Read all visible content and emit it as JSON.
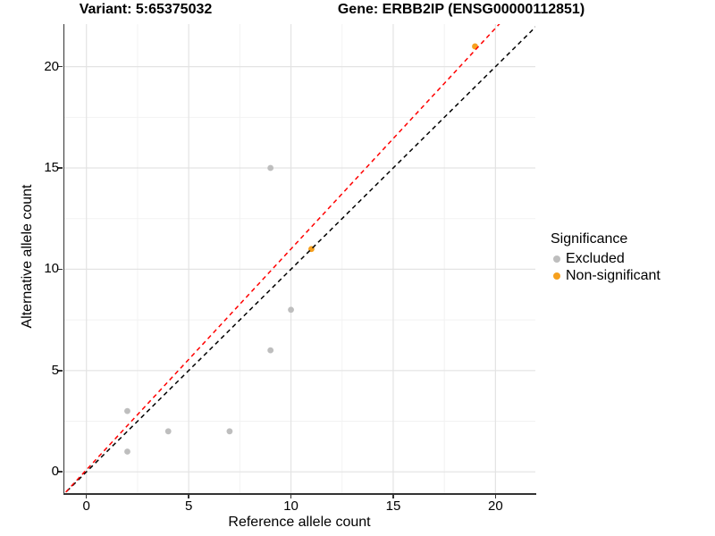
{
  "title": {
    "left": "Variant: 5:65375032",
    "right": "Gene: ERBB2IP (ENSG00000112851)"
  },
  "axes": {
    "x": {
      "label": "Reference allele count",
      "ticks": [
        0,
        5,
        10,
        15,
        20
      ],
      "minor_ticks": [
        2.5,
        7.5,
        12.5,
        17.5
      ]
    },
    "y": {
      "label": "Alternative allele count",
      "ticks": [
        0,
        5,
        10,
        15,
        20
      ],
      "minor_ticks": [
        2.5,
        7.5,
        12.5,
        17.5
      ]
    }
  },
  "legend": {
    "title": "Significance",
    "items": [
      {
        "label": "Excluded",
        "color": "#bebebe"
      },
      {
        "label": "Non-significant",
        "color": "#f6a01e"
      }
    ]
  },
  "chart_data": {
    "type": "scatter",
    "title_left": "Variant: 5:65375032",
    "title_right": "Gene: ERBB2IP (ENSG00000112851)",
    "xlabel": "Reference allele count",
    "ylabel": "Alternative allele count",
    "xlim": [
      -1.08,
      21.95
    ],
    "ylim": [
      -1.05,
      22.1
    ],
    "x_ticks": [
      0,
      5,
      10,
      15,
      20
    ],
    "y_ticks": [
      0,
      5,
      10,
      15,
      20
    ],
    "grid": "major+minor",
    "legend_title": "Significance",
    "legend_position": "right",
    "series": [
      {
        "name": "Excluded",
        "color": "#bebebe",
        "points": [
          [
            2,
            1
          ],
          [
            2,
            3
          ],
          [
            4,
            2
          ],
          [
            7,
            2
          ],
          [
            9,
            6
          ],
          [
            9,
            15
          ],
          [
            10,
            8
          ]
        ]
      },
      {
        "name": "Non-significant",
        "color": "#f6a01e",
        "points": [
          [
            11,
            11
          ],
          [
            19,
            21
          ]
        ]
      }
    ],
    "lines": [
      {
        "name": "identity-line",
        "color": "#000000",
        "linestyle": "dashed",
        "slope": 1,
        "intercept": 0
      },
      {
        "name": "fit-line",
        "color": "#ff0000",
        "linestyle": "dashed",
        "slope": 1.09,
        "intercept": 0.1
      }
    ]
  },
  "colors": {
    "background": "#ffffff",
    "grid_major": "#e3e3e3",
    "grid_minor": "#f2f2f2",
    "axis_line": "#333333",
    "text": "#000000",
    "excluded": "#bebebe",
    "non_significant": "#f6a01e",
    "identity_line": "#000000",
    "fit_line": "#ff0000"
  }
}
